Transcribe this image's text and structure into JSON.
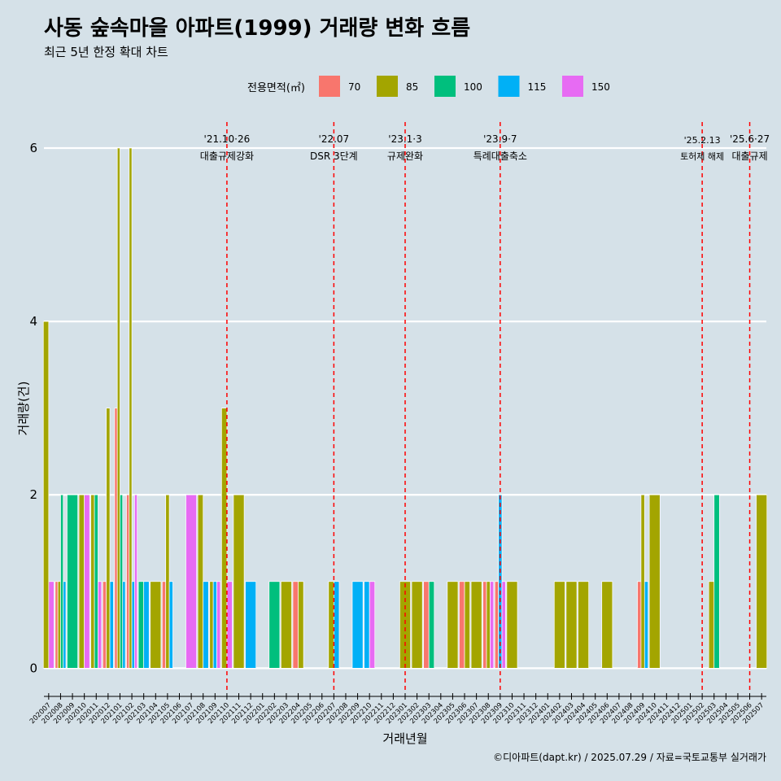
{
  "title": "사동 숲속마을 아파트(1999) 거래량 변화 흐름",
  "subtitle": "최근 5년 한정 확대 차트",
  "caption": "©디아파트(dapt.kr) / 2025.07.29 / 자료=국토교통부 실거래가",
  "legend": {
    "title": "전용면적(㎡)",
    "items": [
      {
        "label": "70",
        "color": "#F8766D"
      },
      {
        "label": "85",
        "color": "#A3A500"
      },
      {
        "label": "100",
        "color": "#00BF7D"
      },
      {
        "label": "115",
        "color": "#00B0F6"
      },
      {
        "label": "150",
        "color": "#E76BF3"
      }
    ]
  },
  "colors": {
    "background": "#d5e1e8",
    "grid": "#ffffff",
    "event_line": "#ff0000"
  },
  "chart_data": {
    "type": "bar",
    "xlabel": "거래년월",
    "ylabel": "거래량(건)",
    "ylim": [
      -0.25,
      6.3
    ],
    "yticks": [
      0,
      2,
      4,
      6
    ],
    "grid": true,
    "legend_position": "top",
    "categories": [
      "202007",
      "202008",
      "202009",
      "202010",
      "202011",
      "202012",
      "202101",
      "202102",
      "202103",
      "202104",
      "202105",
      "202106",
      "202107",
      "202108",
      "202109",
      "202110",
      "202111",
      "202112",
      "202201",
      "202202",
      "202203",
      "202204",
      "202205",
      "202206",
      "202207",
      "202208",
      "202209",
      "202210",
      "202211",
      "202212",
      "202301",
      "202302",
      "202303",
      "202304",
      "202305",
      "202306",
      "202307",
      "202308",
      "202309",
      "202310",
      "202311",
      "202312",
      "202401",
      "202402",
      "202403",
      "202404",
      "202405",
      "202406",
      "202407",
      "202408",
      "202409",
      "202410",
      "202411",
      "202412",
      "202501",
      "202502",
      "202503",
      "202504",
      "202505",
      "202506",
      "202507"
    ],
    "series": [
      {
        "name": "70",
        "values": [
          0,
          1,
          0,
          0,
          0,
          1,
          3,
          2,
          0,
          0,
          1,
          0,
          0,
          0,
          0,
          0,
          0,
          0,
          0,
          0,
          0,
          1,
          0,
          0,
          0,
          0,
          0,
          0,
          0,
          0,
          0,
          0,
          1,
          0,
          0,
          1,
          0,
          1,
          1,
          0,
          0,
          0,
          0,
          0,
          0,
          0,
          0,
          0,
          0,
          0,
          1,
          0,
          0,
          0,
          0,
          0,
          0,
          0,
          0,
          0,
          0
        ]
      },
      {
        "name": "85",
        "values": [
          4,
          1,
          0,
          2,
          2,
          3,
          6,
          6,
          0,
          1,
          2,
          0,
          0,
          2,
          1,
          3,
          2,
          0,
          0,
          0,
          1,
          1,
          0,
          0,
          1,
          0,
          0,
          0,
          0,
          0,
          1,
          1,
          0,
          0,
          1,
          1,
          1,
          1,
          0,
          1,
          0,
          0,
          0,
          1,
          1,
          1,
          0,
          1,
          0,
          0,
          2,
          2,
          0,
          0,
          0,
          0,
          1,
          0,
          0,
          0,
          2
        ]
      },
      {
        "name": "100",
        "values": [
          0,
          2,
          2,
          0,
          2,
          0,
          2,
          0,
          1,
          0,
          0,
          0,
          0,
          0,
          0,
          0,
          0,
          0,
          0,
          1,
          0,
          0,
          0,
          0,
          0,
          0,
          0,
          0,
          0,
          0,
          0,
          0,
          1,
          0,
          0,
          0,
          0,
          0,
          0,
          0,
          0,
          0,
          0,
          0,
          0,
          0,
          0,
          0,
          0,
          0,
          0,
          0,
          0,
          0,
          0,
          0,
          2,
          0,
          0,
          0,
          0
        ]
      },
      {
        "name": "115",
        "values": [
          0,
          1,
          0,
          0,
          0,
          1,
          1,
          1,
          1,
          0,
          1,
          0,
          0,
          1,
          1,
          0,
          0,
          1,
          0,
          0,
          0,
          0,
          0,
          0,
          1,
          0,
          1,
          1,
          0,
          0,
          0,
          0,
          0,
          0,
          0,
          0,
          0,
          0,
          2,
          0,
          0,
          0,
          0,
          0,
          0,
          0,
          0,
          0,
          0,
          0,
          1,
          0,
          0,
          0,
          0,
          0,
          0,
          0,
          0,
          0,
          0
        ]
      },
      {
        "name": "150",
        "values": [
          1,
          0,
          0,
          2,
          1,
          0,
          0,
          2,
          0,
          0,
          0,
          0,
          2,
          0,
          1,
          1,
          0,
          0,
          0,
          0,
          0,
          0,
          0,
          0,
          0,
          0,
          0,
          1,
          0,
          0,
          0,
          0,
          0,
          0,
          0,
          0,
          0,
          1,
          1,
          0,
          0,
          0,
          0,
          0,
          0,
          0,
          0,
          0,
          0,
          0,
          0,
          0,
          0,
          0,
          0,
          0,
          0,
          0,
          0,
          0,
          0
        ]
      }
    ],
    "events": [
      {
        "x": "202110",
        "date": "'21.10·26",
        "label": "대출규제강화"
      },
      {
        "x": "202207",
        "date": "'22.07",
        "label": "DSR 3단계"
      },
      {
        "x": "202301",
        "date": "'23.1·3",
        "label": "규제완화"
      },
      {
        "x": "202309",
        "date": "'23.9·7",
        "label": "특례대출축소"
      },
      {
        "x": "202502",
        "date": "'25.2.13",
        "label": "토허제 해제"
      },
      {
        "x": "202506",
        "date": "'25.6·27",
        "label": "대출규제"
      }
    ]
  }
}
